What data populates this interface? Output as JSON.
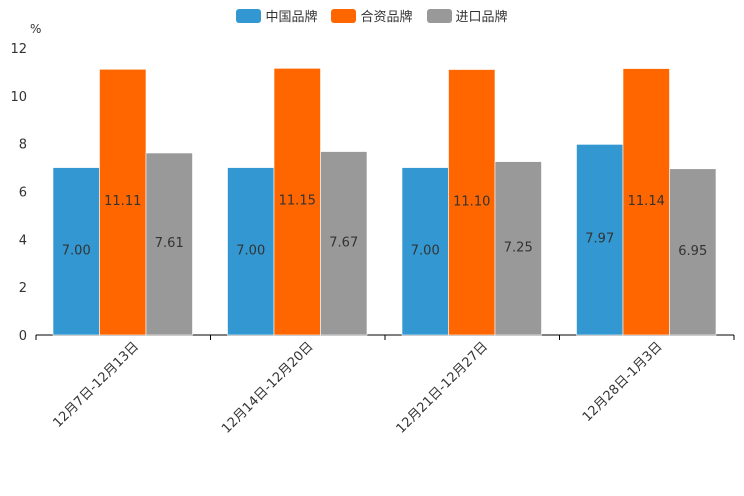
{
  "chart_data": {
    "type": "bar",
    "title": "",
    "unit_label": "%",
    "categories": [
      "12月7日-12月13日",
      "12月14日-12月20日",
      "12月21日-12月27日",
      "12月28日-1月3日"
    ],
    "series": [
      {
        "name": "中国品牌",
        "color": "#3398d1",
        "values": [
          7.0,
          7.0,
          7.0,
          7.97
        ],
        "labels": [
          "7.00",
          "7.00",
          "7.00",
          "7.97"
        ]
      },
      {
        "name": "合资品牌",
        "color": "#ff6600",
        "values": [
          11.11,
          11.15,
          11.1,
          11.14
        ],
        "labels": [
          "11.11",
          "11.15",
          "11.10",
          "11.14"
        ]
      },
      {
        "name": "进口品牌",
        "color": "#999999",
        "values": [
          7.61,
          7.67,
          7.25,
          6.95
        ],
        "labels": [
          "7.61",
          "7.67",
          "7.25",
          "6.95"
        ]
      }
    ],
    "yticks": [
      "0",
      "2",
      "4",
      "6",
      "8",
      "10",
      "12"
    ],
    "ylim": [
      0,
      12
    ],
    "xlabel": "",
    "ylabel": "%"
  }
}
